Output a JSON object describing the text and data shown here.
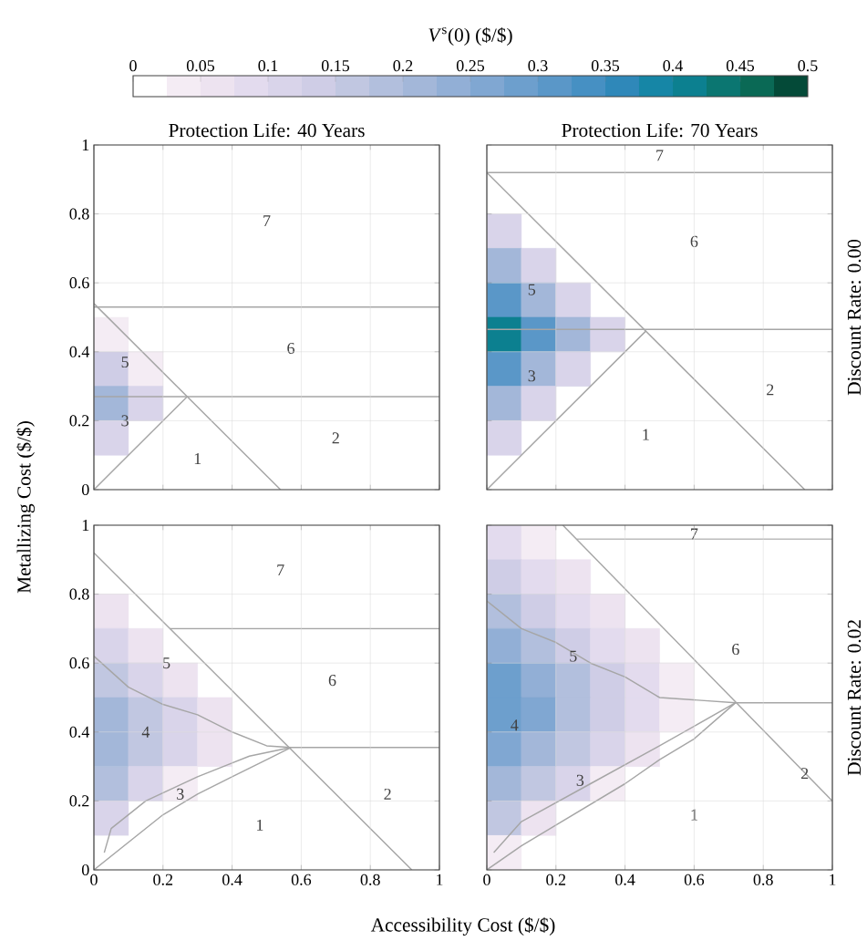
{
  "chart_data": [
    {
      "type": "line",
      "title": "Protection Life: 40 Years",
      "ylabel": "Metallizing Cost ($/$)",
      "clabel": "*V*$^{s}$(0) ($/$)",
      "clim": [
        0,
        0.5
      ],
      "cticks": [
        0,
        0.05,
        0.1,
        0.15,
        0.2,
        0.25,
        0.3,
        0.35,
        0.4,
        0.45,
        0.5
      ],
      "xlim": [
        0,
        1
      ],
      "ylim": [
        0,
        1
      ],
      "xticks": [
        0,
        0.2,
        0.4,
        0.6,
        0.8,
        1
      ],
      "yticks": [
        0,
        0.2,
        0.4,
        0.6,
        0.8,
        1
      ],
      "grid": true,
      "tick_labels": "y",
      "series": [
        {
          "type": "scatter",
          "marker": "square",
          "x": [
            0.05,
            0.05,
            0.15,
            0.05,
            0.15,
            0.05
          ],
          "values": [
            0.45,
            0.35,
            0.35,
            0.25,
            0.25,
            0.15
          ],
          "cvalues": [
            0.04,
            0.14,
            0.04,
            0.2,
            0.1,
            0.1
          ],
          "colors": [
            "#f4ecf4",
            "#cfcde6",
            "#f4ecf4",
            "#a3b7d9",
            "#d9d4ea",
            "#d9d4ea"
          ]
        },
        {
          "type": "line",
          "color": "#a6a6a6",
          "x": [
            0,
            0.54
          ],
          "values": [
            0.54,
            0
          ]
        },
        {
          "type": "line",
          "color": "#a6a6a6",
          "x": [
            0,
            0.27
          ],
          "values": [
            0,
            0.27
          ]
        },
        {
          "type": "line",
          "color": "#a6a6a6",
          "x": [
            0,
            1
          ],
          "values": [
            0.27,
            0.27
          ]
        },
        {
          "type": "line",
          "color": "#a6a6a6",
          "x": [
            0,
            1
          ],
          "values": [
            0.53,
            0.53
          ]
        }
      ],
      "annotations": [
        "7",
        "6",
        "5",
        "3",
        "1",
        "2"
      ]
    },
    {
      "type": "line",
      "title": "Protection Life: 70 Years",
      "y2label": "Discount Rate: 0.00",
      "xlim": [
        0,
        1
      ],
      "ylim": [
        0,
        1
      ],
      "xticks": [
        0,
        0.2,
        0.4,
        0.6,
        0.8,
        1
      ],
      "yticks": [
        0,
        0.2,
        0.4,
        0.6,
        0.8,
        1
      ],
      "grid": true,
      "tick_labels": false,
      "series": [
        {
          "type": "scatter",
          "marker": "square",
          "x": [
            0.05,
            0.05,
            0.15,
            0.05,
            0.15,
            0.25,
            0.05,
            0.15,
            0.25,
            0.35,
            0.05,
            0.15,
            0.25,
            0.05,
            0.15,
            0.05
          ],
          "values": [
            0.75,
            0.65,
            0.65,
            0.55,
            0.55,
            0.55,
            0.45,
            0.45,
            0.45,
            0.45,
            0.35,
            0.35,
            0.35,
            0.25,
            0.25,
            0.15
          ],
          "colors": [
            "#d9d4ea",
            "#a3b7d9",
            "#d9d4ea",
            "#5a97c8",
            "#a3b7d9",
            "#d9d4ea",
            "#0c8090",
            "#5a97c8",
            "#a3b7d9",
            "#d9d4ea",
            "#5a97c8",
            "#a3b7d9",
            "#d9d4ea",
            "#a3b7d9",
            "#d9d4ea",
            "#d9d4ea"
          ]
        },
        {
          "type": "line",
          "color": "#a6a6a6",
          "x": [
            0,
            0.92
          ],
          "values": [
            0.92,
            0
          ]
        },
        {
          "type": "line",
          "color": "#a6a6a6",
          "x": [
            0,
            0.46
          ],
          "values": [
            0,
            0.46
          ]
        },
        {
          "type": "line",
          "color": "#a6a6a6",
          "x": [
            0,
            1
          ],
          "values": [
            0.465,
            0.465
          ]
        },
        {
          "type": "line",
          "color": "#a6a6a6",
          "x": [
            0,
            1
          ],
          "values": [
            0.92,
            0.92
          ]
        }
      ],
      "annotations": [
        "7",
        "6",
        "5",
        "3",
        "1",
        "2"
      ]
    },
    {
      "type": "line",
      "xlabel": "Accessibility Cost ($/$)",
      "xlim": [
        0,
        1
      ],
      "ylim": [
        0,
        1
      ],
      "xticks": [
        0,
        0.2,
        0.4,
        0.6,
        0.8,
        1
      ],
      "yticks": [
        0,
        0.2,
        0.4,
        0.6,
        0.8,
        1
      ],
      "grid": true,
      "series": [
        {
          "type": "scatter",
          "marker": "square",
          "x": [
            0.05,
            0.05,
            0.15,
            0.05,
            0.15,
            0.25,
            0.05,
            0.15,
            0.25,
            0.35,
            0.05,
            0.15,
            0.25,
            0.35,
            0.05,
            0.15,
            0.25,
            0.05
          ],
          "values": [
            0.75,
            0.65,
            0.65,
            0.55,
            0.55,
            0.55,
            0.45,
            0.45,
            0.45,
            0.45,
            0.35,
            0.35,
            0.35,
            0.35,
            0.25,
            0.25,
            0.25,
            0.15
          ],
          "colors": [
            "#ede3f0",
            "#d9d4ea",
            "#ede3f0",
            "#c1c7e1",
            "#d9d4ea",
            "#ede3f0",
            "#a3b7d9",
            "#c1c7e1",
            "#d9d4ea",
            "#ede3f0",
            "#a3b7d9",
            "#c1c7e1",
            "#d9d4ea",
            "#ede3f0",
            "#b2bfdd",
            "#d9d4ea",
            "#f4ecf4",
            "#d9d4ea"
          ]
        },
        {
          "type": "line",
          "color": "#a6a6a6",
          "x": [
            0,
            0.92
          ],
          "values": [
            0.92,
            0
          ]
        },
        {
          "type": "line",
          "color": "#a6a6a6",
          "x": [
            0.22,
            1
          ],
          "values": [
            0.7,
            0.7
          ]
        },
        {
          "type": "line",
          "color": "#a6a6a6",
          "x": [
            0,
            0.1,
            0.2,
            0.3,
            0.4,
            0.5,
            0.57
          ],
          "values": [
            0,
            0.08,
            0.16,
            0.22,
            0.27,
            0.32,
            0.355
          ]
        },
        {
          "type": "line",
          "color": "#a6a6a6",
          "x": [
            0,
            0.1,
            0.2,
            0.3,
            0.4,
            0.5,
            0.57,
            1
          ],
          "values": [
            0.62,
            0.53,
            0.48,
            0.45,
            0.4,
            0.36,
            0.355,
            0.355
          ]
        },
        {
          "type": "line",
          "color": "#a6a6a6",
          "x": [
            0.03,
            0.05,
            0.15,
            0.3,
            0.45,
            0.57
          ],
          "values": [
            0.05,
            0.12,
            0.2,
            0.27,
            0.33,
            0.355
          ]
        }
      ],
      "annotations": [
        "7",
        "6",
        "5",
        "4",
        "3",
        "2",
        "1"
      ]
    },
    {
      "type": "line",
      "y2label": "Discount Rate: 0.02",
      "xlim": [
        0,
        1
      ],
      "ylim": [
        0,
        1
      ],
      "xticks": [
        0,
        0.2,
        0.4,
        0.6,
        0.8,
        1
      ],
      "yticks": [
        0,
        0.2,
        0.4,
        0.6,
        0.8,
        1
      ],
      "grid": true,
      "tick_labels": "x",
      "series": [
        {
          "type": "scatter",
          "marker": "square",
          "x": [
            0.05,
            0.15,
            0.05,
            0.15,
            0.25,
            0.05,
            0.15,
            0.25,
            0.35,
            0.05,
            0.15,
            0.25,
            0.35,
            0.45,
            0.05,
            0.15,
            0.25,
            0.35,
            0.45,
            0.55,
            0.05,
            0.15,
            0.25,
            0.35,
            0.45,
            0.55,
            0.05,
            0.15,
            0.25,
            0.35,
            0.45,
            0.05,
            0.15,
            0.25,
            0.35,
            0.05,
            0.15,
            0.05
          ],
          "values": [
            0.95,
            0.95,
            0.85,
            0.85,
            0.85,
            0.75,
            0.75,
            0.75,
            0.75,
            0.65,
            0.65,
            0.65,
            0.65,
            0.65,
            0.55,
            0.55,
            0.55,
            0.55,
            0.55,
            0.55,
            0.45,
            0.45,
            0.45,
            0.45,
            0.45,
            0.45,
            0.35,
            0.35,
            0.35,
            0.35,
            0.35,
            0.25,
            0.25,
            0.25,
            0.25,
            0.15,
            0.15,
            0.05
          ],
          "colors": [
            "#e3dbee",
            "#f4ecf4",
            "#cfcde6",
            "#e3dbee",
            "#ede3f0",
            "#b2bfdd",
            "#cfcde6",
            "#e3dbee",
            "#ede3f0",
            "#92afd6",
            "#b2bfdd",
            "#cfcde6",
            "#e3dbee",
            "#ede3f0",
            "#6d9fcd",
            "#92afd6",
            "#b2bfdd",
            "#cfcde6",
            "#e3dbee",
            "#f4ecf4",
            "#6d9fcd",
            "#80a7d2",
            "#b2bfdd",
            "#cfcde6",
            "#e3dbee",
            "#f4ecf4",
            "#80a7d2",
            "#a3b7d9",
            "#c1c7e1",
            "#d9d4ea",
            "#ede3f0",
            "#a3b7d9",
            "#c1c7e1",
            "#d9d4ea",
            "#f4ecf4",
            "#c1c7e1",
            "#ede3f0",
            "#f4ecf4"
          ]
        },
        {
          "type": "line",
          "color": "#a6a6a6",
          "x": [
            0.22,
            1
          ],
          "values": [
            1,
            0.2
          ]
        },
        {
          "type": "line",
          "color": "#a6a6a6",
          "x": [
            0.26,
            1
          ],
          "values": [
            0.96,
            0.96
          ]
        },
        {
          "type": "line",
          "color": "#a6a6a6",
          "x": [
            0,
            0.1,
            0.2,
            0.3,
            0.4,
            0.5,
            0.6,
            0.72
          ],
          "values": [
            0,
            0.07,
            0.13,
            0.19,
            0.25,
            0.32,
            0.38,
            0.485
          ]
        },
        {
          "type": "line",
          "color": "#a6a6a6",
          "x": [
            0,
            0.1,
            0.2,
            0.3,
            0.4,
            0.5,
            0.72,
            1
          ],
          "values": [
            0.78,
            0.7,
            0.66,
            0.6,
            0.56,
            0.5,
            0.485,
            0.485
          ]
        },
        {
          "type": "line",
          "color": "#a6a6a6",
          "x": [
            0.02,
            0.1,
            0.3,
            0.5,
            0.72
          ],
          "values": [
            0.05,
            0.14,
            0.25,
            0.36,
            0.485
          ]
        }
      ],
      "annotations": [
        "7",
        "6",
        "5",
        "4",
        "3",
        "2",
        "1"
      ]
    }
  ]
}
